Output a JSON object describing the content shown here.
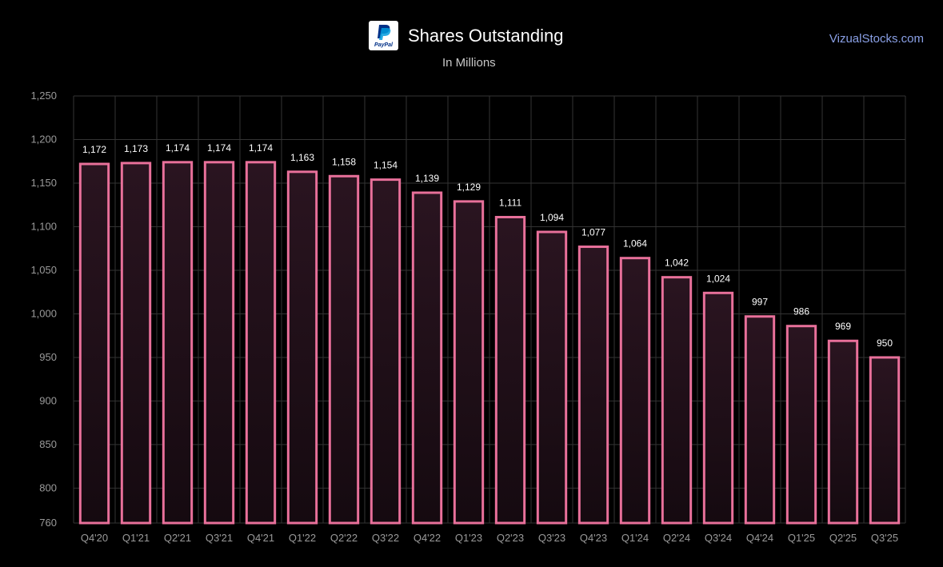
{
  "header": {
    "title": "Shares Outstanding",
    "subtitle": "In Millions",
    "watermark": "VizualStocks.com",
    "logo_text": "PayPal",
    "logo_colors": {
      "dark_blue": "#003087",
      "light_blue": "#009cde"
    }
  },
  "colors": {
    "background": "#000000",
    "bar_stroke": "#e8709a",
    "bar_fill_top": "#2a1420",
    "bar_fill_bottom": "#150a10",
    "grid": "#333333",
    "tick_text": "#9a9a9a",
    "label_text": "#ffffff"
  },
  "chart_data": {
    "type": "bar",
    "title": "Shares Outstanding",
    "subtitle": "In Millions",
    "xlabel": "",
    "ylabel": "",
    "ylim": [
      760,
      1250
    ],
    "yticks": [
      760,
      800,
      850,
      900,
      950,
      1000,
      1050,
      1100,
      1150,
      1200,
      1250
    ],
    "ytick_labels": [
      "760",
      "800",
      "850",
      "900",
      "950",
      "1,000",
      "1,050",
      "1,100",
      "1,150",
      "1,200",
      "1,250"
    ],
    "grid": true,
    "categories": [
      "Q4'20",
      "Q1'21",
      "Q2'21",
      "Q3'21",
      "Q4'21",
      "Q1'22",
      "Q2'22",
      "Q3'22",
      "Q4'22",
      "Q1'23",
      "Q2'23",
      "Q3'23",
      "Q4'23",
      "Q1'24",
      "Q2'24",
      "Q3'24",
      "Q4'24",
      "Q1'25",
      "Q2'25",
      "Q3'25"
    ],
    "values": [
      1172,
      1173,
      1174,
      1174,
      1174,
      1163,
      1158,
      1154,
      1139,
      1129,
      1111,
      1094,
      1077,
      1064,
      1042,
      1024,
      997,
      986,
      969,
      950
    ],
    "value_labels": [
      "1,172",
      "1,173",
      "1,174",
      "1,174",
      "1,174",
      "1,163",
      "1,158",
      "1,154",
      "1,139",
      "1,129",
      "1,111",
      "1,094",
      "1,077",
      "1,064",
      "1,042",
      "1,024",
      "997",
      "986",
      "969",
      "950"
    ]
  }
}
